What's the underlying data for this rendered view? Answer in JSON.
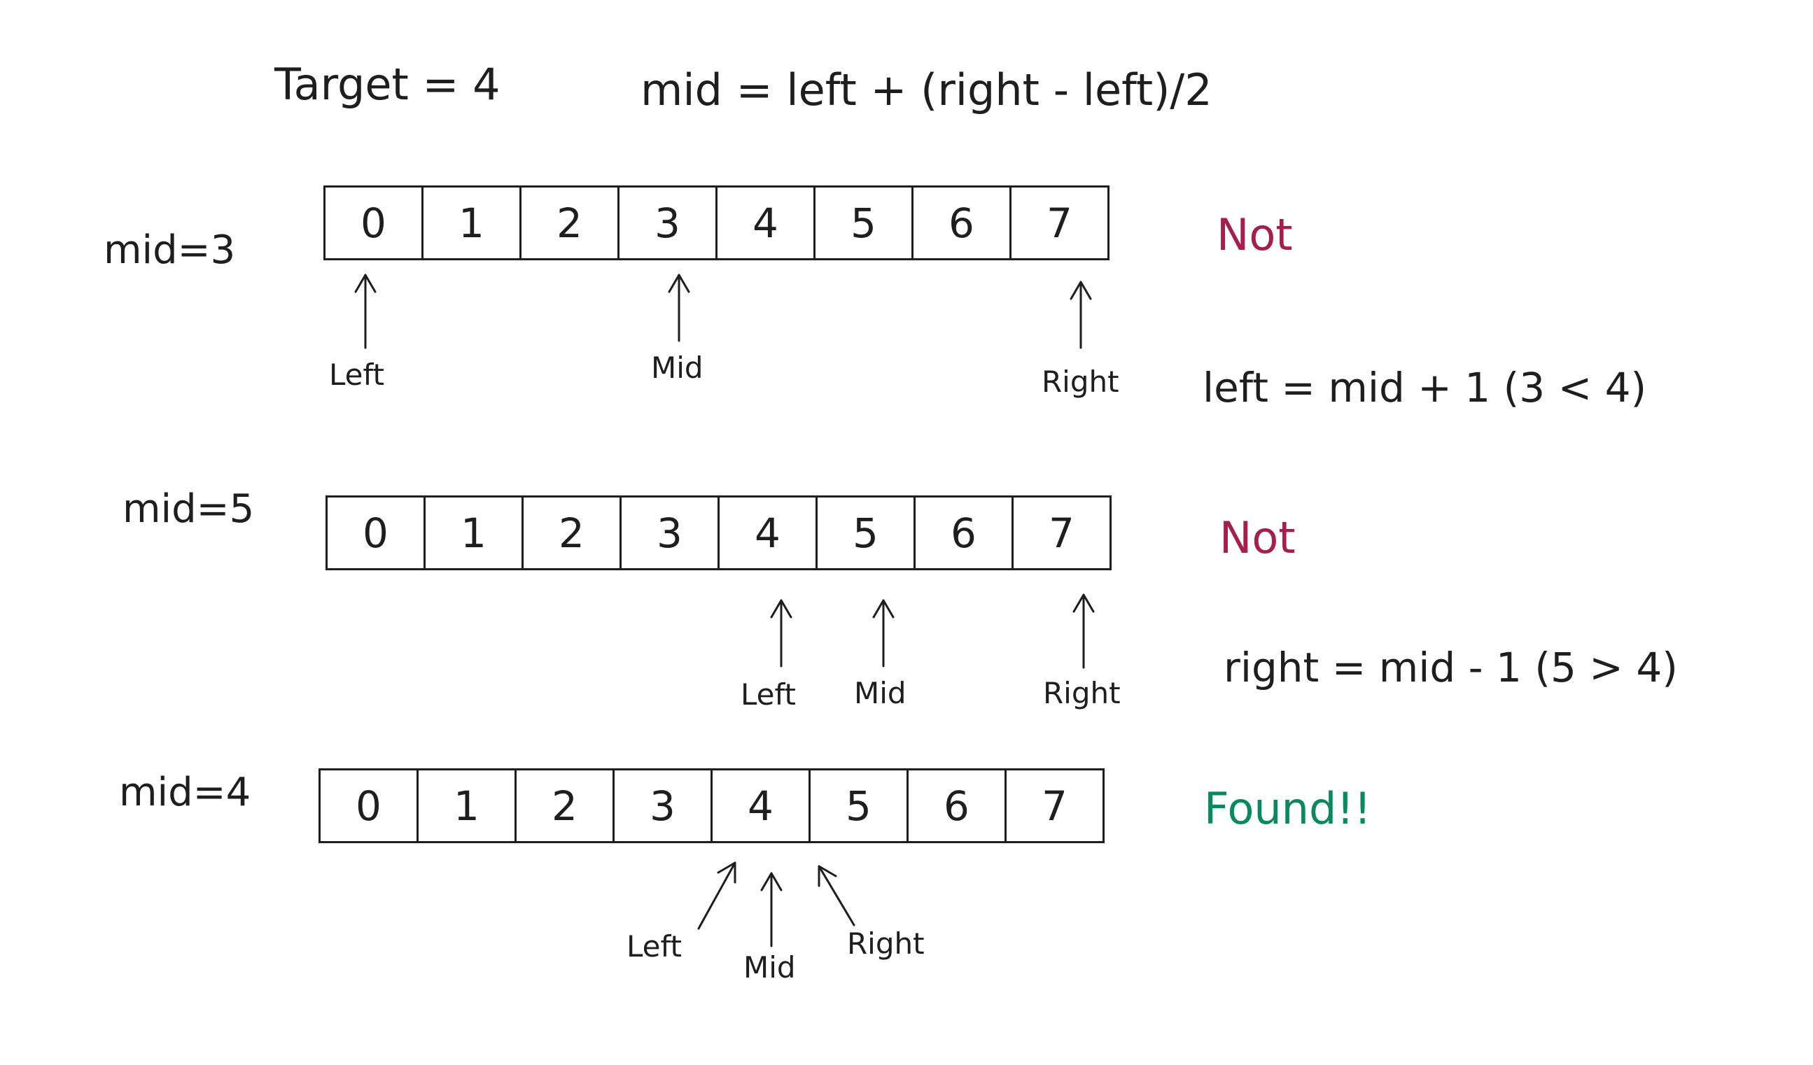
{
  "header": {
    "target": "Target = 4",
    "formula": "mid = left + (right - left)/2"
  },
  "colors": {
    "not": "#a61e4d",
    "found": "#098a5c",
    "ink": "#1e1e1e"
  },
  "steps": [
    {
      "mid_label": "mid=3",
      "cells": [
        "0",
        "1",
        "2",
        "3",
        "4",
        "5",
        "6",
        "7"
      ],
      "pointers": [
        "Left",
        "Mid",
        "Right"
      ],
      "status": "Not",
      "note": "left = mid + 1 (3 < 4)"
    },
    {
      "mid_label": "mid=5",
      "cells": [
        "0",
        "1",
        "2",
        "3",
        "4",
        "5",
        "6",
        "7"
      ],
      "pointers": [
        "Left",
        "Mid",
        "Right"
      ],
      "status": "Not",
      "note": "right = mid - 1 (5 > 4)"
    },
    {
      "mid_label": "mid=4",
      "cells": [
        "0",
        "1",
        "2",
        "3",
        "4",
        "5",
        "6",
        "7"
      ],
      "pointers": [
        "Left",
        "Mid",
        "Right"
      ],
      "status": "Found!!"
    }
  ]
}
